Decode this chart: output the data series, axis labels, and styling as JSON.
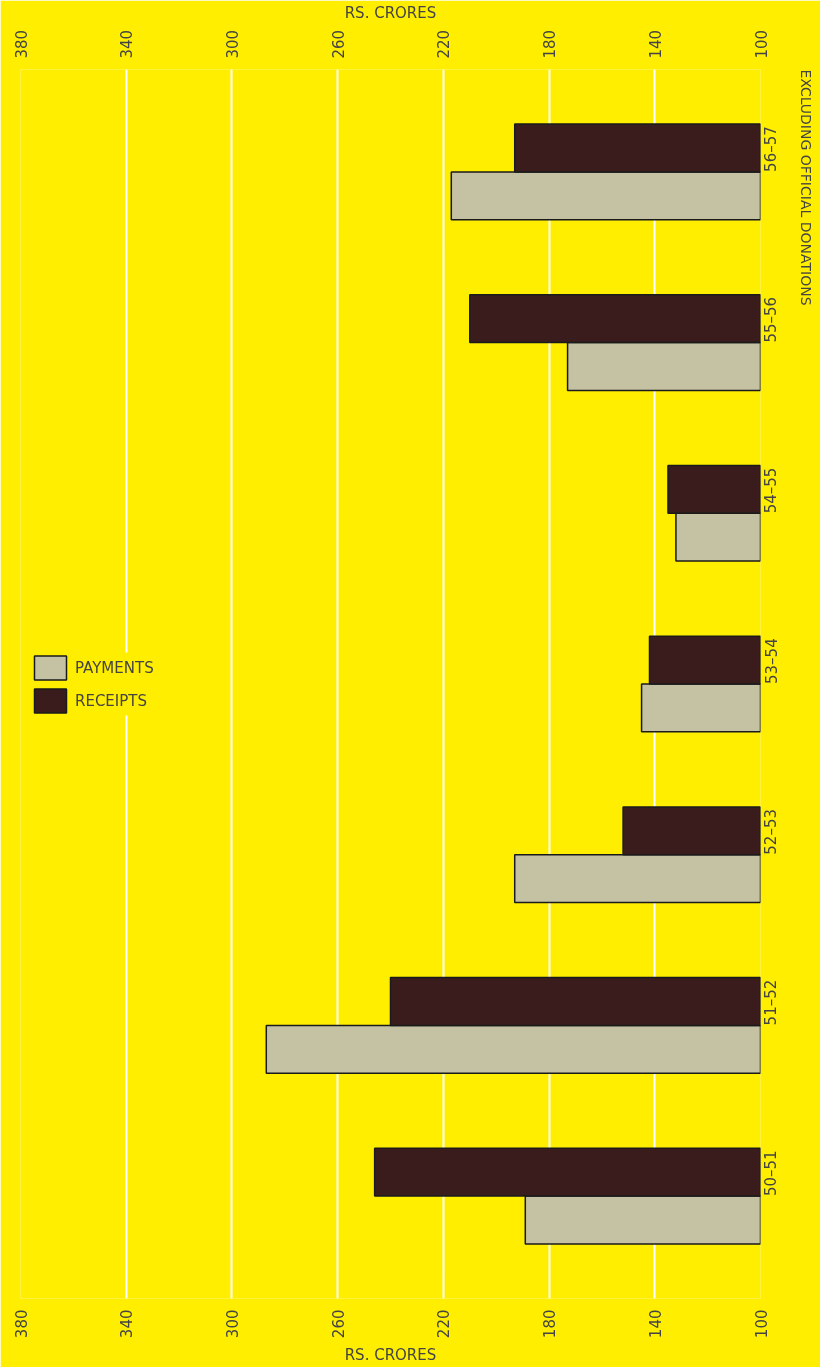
{
  "chart_data": {
    "type": "bar",
    "orientation": "horizontal",
    "categories": [
      "56–57",
      "55–56",
      "54–55",
      "53–54",
      "52–53",
      "51–52",
      "50–51"
    ],
    "series": [
      {
        "name": "PAYMENTS",
        "color": "#c4c2a2",
        "values": [
          217,
          173,
          132,
          145,
          193,
          287,
          189
        ]
      },
      {
        "name": "RECEIPTS",
        "color": "#3a1c1c",
        "values": [
          193,
          210,
          135,
          142,
          152,
          240,
          246
        ]
      }
    ],
    "xlabel": "RS. CRORES",
    "x2label": "RS. CRORES",
    "xlim": [
      380,
      100
    ],
    "xticks": [
      380,
      340,
      300,
      260,
      220,
      180,
      140,
      100
    ],
    "x2lim": [
      380,
      100
    ],
    "x2ticks": [
      380,
      340,
      300,
      260,
      220,
      180,
      140,
      100
    ],
    "annotations": [
      "EXCLUDING OFFICIAL DONATIONS"
    ],
    "grid": "x",
    "legend": "left"
  }
}
